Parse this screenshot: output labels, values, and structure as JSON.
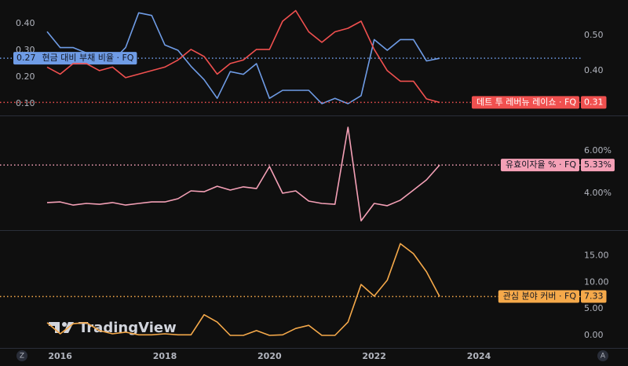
{
  "chart_data": [
    {
      "type": "line",
      "x": [
        2015.75,
        2016,
        2016.25,
        2016.5,
        2016.75,
        2017,
        2017.25,
        2017.5,
        2017.75,
        2018,
        2018.25,
        2018.5,
        2018.75,
        2019,
        2019.25,
        2019.5,
        2019.75,
        2020,
        2020.25,
        2020.5,
        2020.75,
        2021,
        2021.25,
        2021.5,
        2021.75,
        2022,
        2022.25,
        2022.5,
        2022.75,
        2023,
        2023.25
      ],
      "xlim": [
        2014.85,
        2025.95
      ],
      "ylim": [
        0.056,
        0.488
      ],
      "yticks": [
        {
          "value": 0.1,
          "label": "0.10"
        },
        {
          "value": 0.2,
          "label": "0.20"
        },
        {
          "value": 0.3,
          "label": "0.30"
        },
        {
          "value": 0.4,
          "label": "0.40"
        }
      ],
      "y2lim": [
        0.273,
        0.6
      ],
      "y2ticks": [
        {
          "value": 0.4,
          "label": "0.40"
        },
        {
          "value": 0.5,
          "label": "0.50"
        }
      ],
      "grid": false,
      "series": [
        {
          "name": "현금 대비 부채 비율 · FQ",
          "color": "#6f9ce6",
          "values": [
            0.37,
            0.31,
            0.31,
            0.29,
            0.26,
            0.26,
            0.31,
            0.44,
            0.43,
            0.32,
            0.3,
            0.24,
            0.19,
            0.12,
            0.22,
            0.21,
            0.25,
            0.12,
            0.15,
            0.15,
            0.15,
            0.1,
            0.12,
            0.1,
            0.13,
            0.34,
            0.3,
            0.34,
            0.34,
            0.26,
            0.27
          ]
        },
        {
          "name": "데트 투 레버뉴 레이쇼 · FQ",
          "color": "#f0504f",
          "axis": "y2",
          "values": [
            0.41,
            0.39,
            0.42,
            0.42,
            0.4,
            0.41,
            0.38,
            0.39,
            0.4,
            0.41,
            0.43,
            0.46,
            0.44,
            0.39,
            0.42,
            0.43,
            0.46,
            0.46,
            0.54,
            0.57,
            0.51,
            0.48,
            0.51,
            0.52,
            0.54,
            0.46,
            0.4,
            0.37,
            0.37,
            0.32,
            0.31
          ]
        }
      ]
    },
    {
      "type": "line",
      "x": [
        2015.75,
        2016,
        2016.25,
        2016.5,
        2016.75,
        2017,
        2017.25,
        2017.5,
        2017.75,
        2018,
        2018.25,
        2018.5,
        2018.75,
        2019,
        2019.25,
        2019.5,
        2019.75,
        2020,
        2020.25,
        2020.5,
        2020.75,
        2021,
        2021.25,
        2021.5,
        2021.75,
        2022,
        2022.25,
        2022.5,
        2022.75,
        2023,
        2023.25
      ],
      "xlim": [
        2014.85,
        2025.95
      ],
      "ylim": [
        2.26,
        7.63
      ],
      "yticks": [
        {
          "value": 4,
          "label": "4.00%"
        },
        {
          "value": 6,
          "label": "6.00%"
        }
      ],
      "grid": false,
      "series": [
        {
          "name": "유효이자율 % · FQ",
          "color": "#f4a0b6",
          "values": [
            3.56,
            3.59,
            3.44,
            3.52,
            3.48,
            3.56,
            3.44,
            3.52,
            3.59,
            3.59,
            3.74,
            4.11,
            4.07,
            4.33,
            4.15,
            4.3,
            4.22,
            5.26,
            4.0,
            4.11,
            3.63,
            3.52,
            3.48,
            7.11,
            2.7,
            3.52,
            3.41,
            3.67,
            4.15,
            4.63,
            5.33
          ],
          "value_labels": {
            "30": "5.33%"
          }
        }
      ]
    },
    {
      "type": "line",
      "x": [
        2015.75,
        2016,
        2016.25,
        2016.5,
        2016.75,
        2017,
        2017.25,
        2017.5,
        2017.75,
        2018,
        2018.25,
        2018.5,
        2018.75,
        2019,
        2019.25,
        2019.5,
        2019.75,
        2020,
        2020.25,
        2020.5,
        2020.75,
        2021,
        2021.25,
        2021.5,
        2021.75,
        2022,
        2022.25,
        2022.5,
        2022.75,
        2023,
        2023.25
      ],
      "xlim": [
        2014.85,
        2025.95
      ],
      "xticks": [
        2016,
        2018,
        2020,
        2022,
        2024
      ],
      "ylim": [
        -2.37,
        19.7
      ],
      "yticks": [
        {
          "value": 0,
          "label": "0.00"
        },
        {
          "value": 5,
          "label": "5.00"
        },
        {
          "value": 10,
          "label": "10.00"
        },
        {
          "value": 15,
          "label": "15.00"
        }
      ],
      "grid": false,
      "series": [
        {
          "name": "관심 분야 커버 · FQ",
          "color": "#f5a94a",
          "values": [
            2.4,
            0.3,
            2.2,
            2.4,
            0.9,
            0.3,
            0.6,
            0.1,
            0.1,
            0.3,
            0.1,
            0.1,
            3.9,
            2.5,
            0,
            0,
            0.9,
            0,
            0.1,
            1.3,
            1.9,
            0,
            0,
            2.5,
            9.6,
            7.4,
            10.4,
            17.3,
            15.4,
            12.0,
            7.33
          ]
        }
      ]
    }
  ],
  "watermark": "TradingView",
  "buttons": [
    "Z",
    "A"
  ]
}
